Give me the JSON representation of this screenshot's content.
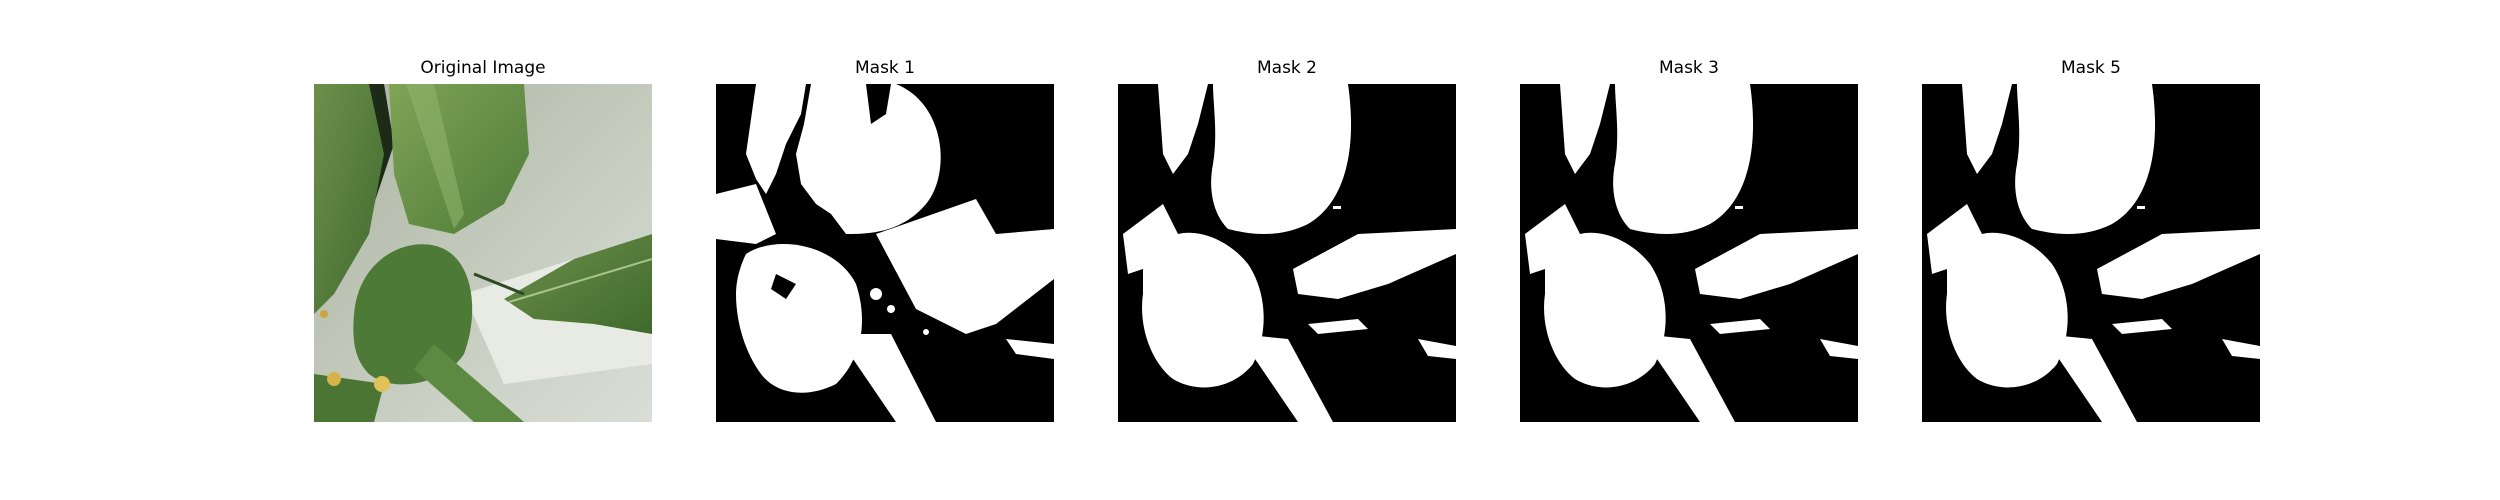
{
  "figure": {
    "panels": [
      {
        "title": "Original Image"
      },
      {
        "title": "Mask 1"
      },
      {
        "title": "Mask 2"
      },
      {
        "title": "Mask 3"
      },
      {
        "title": "Mask 5"
      }
    ]
  },
  "colors": {
    "mask_foreground": "#ffffff",
    "mask_background": "#000000",
    "background": "#ffffff"
  }
}
